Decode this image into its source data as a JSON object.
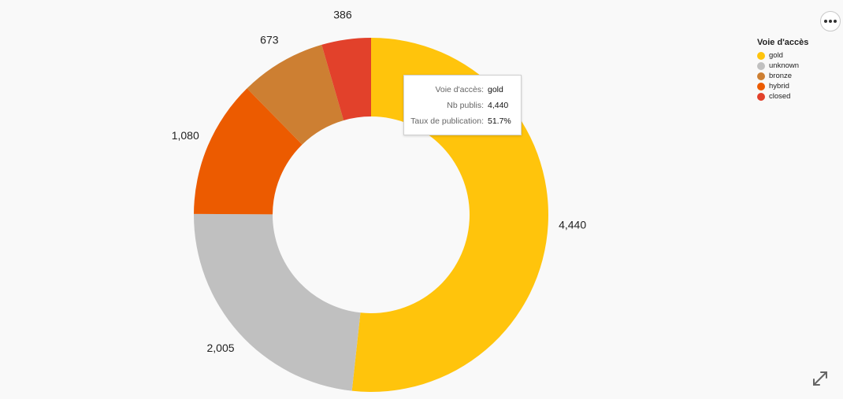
{
  "chart_data": {
    "type": "pie",
    "donut": true,
    "legend_title": "Voie d'accès",
    "legend_position": "top-right",
    "categories": [
      "gold",
      "unknown",
      "bronze",
      "hybrid",
      "closed"
    ],
    "slices": [
      {
        "name": "gold",
        "value": 4440,
        "label": "4,440",
        "color": "#FFC40C"
      },
      {
        "name": "unknown",
        "value": 2005,
        "label": "2,005",
        "color": "#C0C0C0"
      },
      {
        "name": "hybrid",
        "value": 1080,
        "label": "1,080",
        "color": "#EC5B00"
      },
      {
        "name": "bronze",
        "value": 673,
        "label": "673",
        "color": "#CD7F32"
      },
      {
        "name": "closed",
        "value": 386,
        "label": "386",
        "color": "#E2412B"
      }
    ],
    "legend": [
      {
        "name": "gold",
        "color": "#FFC40C"
      },
      {
        "name": "unknown",
        "color": "#C0C0C0"
      },
      {
        "name": "bronze",
        "color": "#CD7F32"
      },
      {
        "name": "hybrid",
        "color": "#EC5B00"
      },
      {
        "name": "closed",
        "color": "#E2412B"
      }
    ]
  },
  "tooltip": {
    "rows": [
      {
        "key": "Voie d'accès:",
        "value": "gold"
      },
      {
        "key": "Nb publis:",
        "value": "4,440"
      },
      {
        "key": "Taux de publication:",
        "value": "51.7%"
      }
    ]
  },
  "controls": {
    "more_icon": "more-horizontal-icon",
    "expand_icon": "expand-arrows-icon"
  }
}
